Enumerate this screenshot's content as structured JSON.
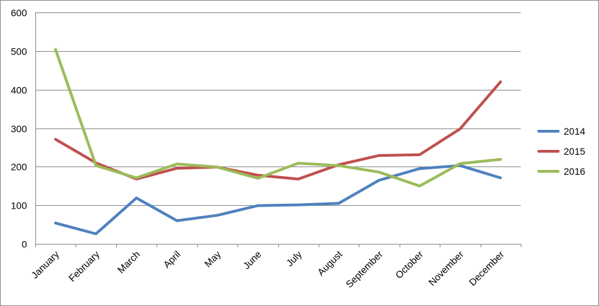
{
  "chart_data": {
    "type": "line",
    "title": "",
    "xlabel": "",
    "ylabel": "",
    "categories": [
      "January",
      "February",
      "March",
      "April",
      "May",
      "June",
      "July",
      "August",
      "September",
      "October",
      "November",
      "December"
    ],
    "ylim": [
      0,
      600
    ],
    "yticks": [
      "0",
      "100",
      "200",
      "300",
      "400",
      "500",
      "600"
    ],
    "grid": true,
    "legend": "right",
    "series": [
      {
        "name": "2014",
        "color": "#4f81bd",
        "values": [
          54,
          26,
          119,
          60,
          74,
          99,
          101,
          105,
          165,
          195,
          203,
          171
        ]
      },
      {
        "name": "2015",
        "color": "#c0504d",
        "values": [
          271,
          210,
          168,
          196,
          199,
          178,
          168,
          205,
          229,
          231,
          298,
          420
        ]
      },
      {
        "name": "2016",
        "color": "#9bbb59",
        "values": [
          504,
          203,
          171,
          207,
          199,
          170,
          209,
          203,
          186,
          150,
          208,
          219
        ]
      }
    ]
  }
}
